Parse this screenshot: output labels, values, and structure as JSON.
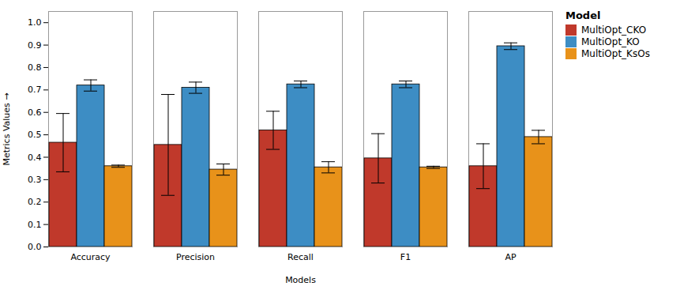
{
  "chart_data": {
    "type": "bar",
    "xlabel": "Models",
    "ylabel": "Metrics Values",
    "legend_title": "Model",
    "categories": [
      "Accuracy",
      "Precision",
      "Recall",
      "F1",
      "AP"
    ],
    "series": [
      {
        "name": "MultiOpt_CKO",
        "color": "#c0392b",
        "values": [
          0.465,
          0.455,
          0.52,
          0.395,
          0.36
        ],
        "errors": [
          0.13,
          0.225,
          0.085,
          0.11,
          0.1
        ]
      },
      {
        "name": "MultiOpt_KO",
        "color": "#3d8dc4",
        "values": [
          0.72,
          0.71,
          0.725,
          0.725,
          0.895
        ],
        "errors": [
          0.025,
          0.025,
          0.015,
          0.015,
          0.015
        ]
      },
      {
        "name": "MultiOpt_KsOs",
        "color": "#e8921a",
        "values": [
          0.36,
          0.345,
          0.355,
          0.355,
          0.49
        ],
        "errors": [
          0.005,
          0.025,
          0.025,
          0.005,
          0.03
        ]
      }
    ],
    "ylim": [
      0,
      1.05
    ],
    "yticks": [
      {
        "value": 0,
        "label": "0.0"
      },
      0.1,
      0.2,
      0.3,
      0.4,
      0.5,
      0.6,
      0.7,
      0.8,
      0.9,
      {
        "value": 1,
        "label": "1.0"
      }
    ],
    "grid": false,
    "legend": "right"
  }
}
